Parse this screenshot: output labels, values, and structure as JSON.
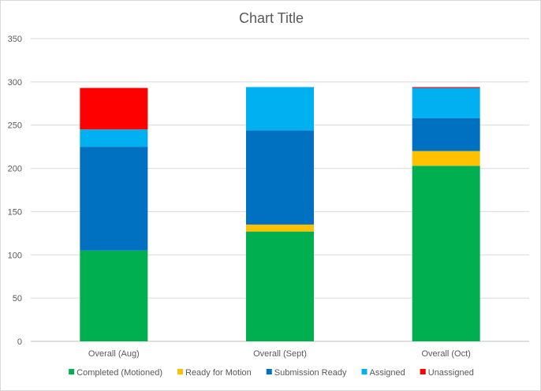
{
  "chart_data": {
    "type": "bar",
    "stacked": true,
    "title": "Chart Title",
    "xlabel": "",
    "ylabel": "",
    "categories": [
      "Overall (Aug)",
      "Overall (Sept)",
      "Overall (Oct)"
    ],
    "ylim": [
      0,
      350
    ],
    "yticks": [
      0,
      50,
      100,
      150,
      200,
      250,
      300,
      350
    ],
    "grid": true,
    "legend_position": "bottom",
    "series": [
      {
        "name": "Completed (Motioned)",
        "color": "#00b050",
        "values": [
          105,
          127,
          203
        ]
      },
      {
        "name": "Ready for Motion",
        "color": "#ffc000",
        "values": [
          0,
          8,
          17
        ]
      },
      {
        "name": "Submission Ready",
        "color": "#0070c0",
        "values": [
          120,
          109,
          38
        ]
      },
      {
        "name": "Assigned",
        "color": "#00b0f0",
        "values": [
          20,
          50,
          35
        ]
      },
      {
        "name": "Unassigned",
        "color": "#ff0000",
        "values": [
          48,
          0,
          1
        ]
      }
    ]
  }
}
